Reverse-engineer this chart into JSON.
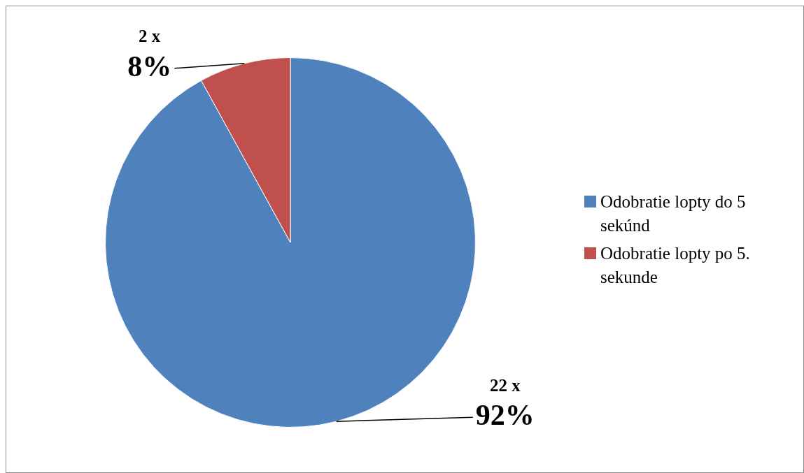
{
  "chart_data": {
    "type": "pie",
    "categories": [
      "Odobratie lopty do 5 sekúnd",
      "Odobratie lopty po 5. sekunde"
    ],
    "values": [
      92,
      8
    ],
    "colors": [
      "#4f81bd",
      "#c0504d"
    ],
    "value_labels": [
      "22 x\n92%",
      "2 x\n8%"
    ],
    "legend": "right"
  }
}
